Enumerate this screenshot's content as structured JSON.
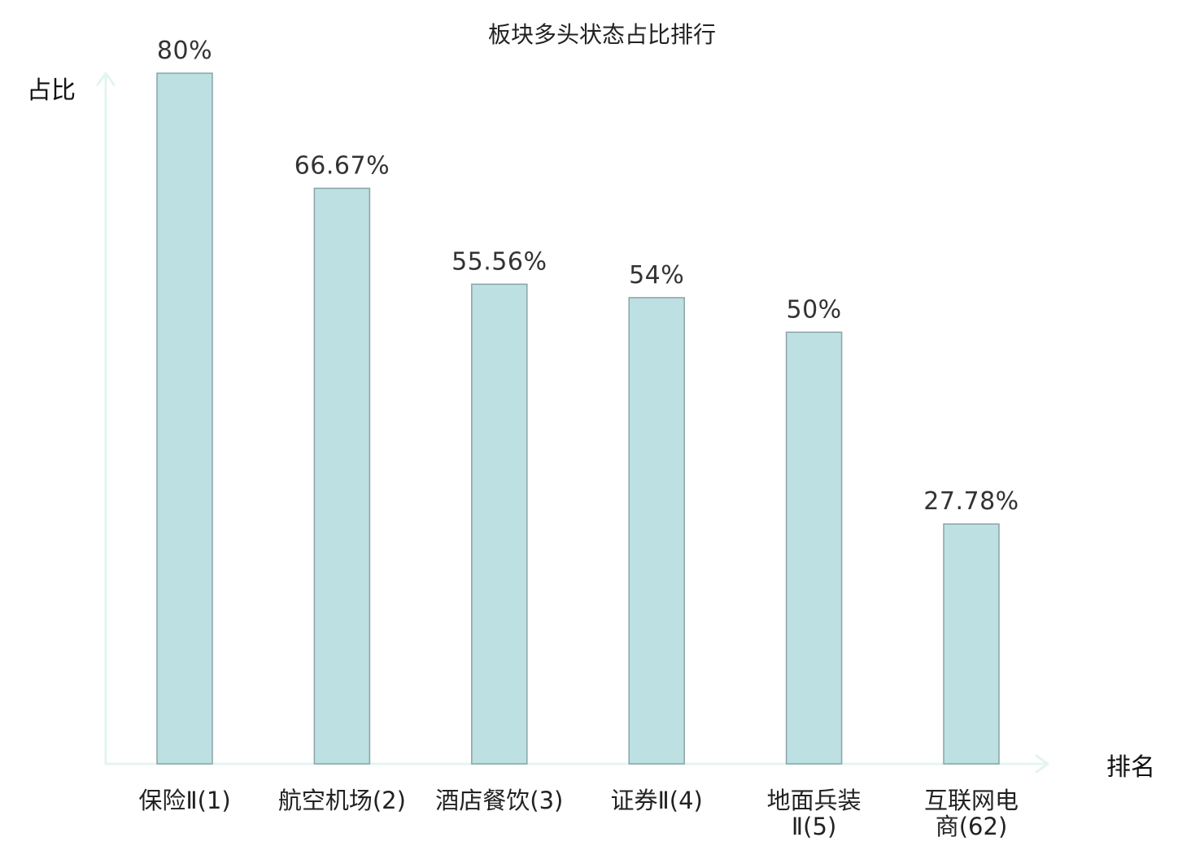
{
  "chart_data": {
    "type": "bar",
    "title": "板块多头状态占比排行",
    "ylabel": "占比",
    "xlabel": "排名",
    "ylim": [
      0,
      100
    ],
    "grid": false,
    "categories": [
      {
        "lines": [
          "保险Ⅱ(1)"
        ],
        "highlight": false
      },
      {
        "lines": [
          "航空机场(2)"
        ],
        "highlight": false
      },
      {
        "lines": [
          "酒店餐饮(3)"
        ],
        "highlight": false
      },
      {
        "lines": [
          "证券Ⅱ(4)"
        ],
        "highlight": false
      },
      {
        "lines": [
          "地面兵装",
          "Ⅱ(5)"
        ],
        "highlight": false
      },
      {
        "lines": [
          "互联网电",
          "商(62)"
        ],
        "highlight": true
      }
    ],
    "values": [
      80,
      66.67,
      55.56,
      54,
      50,
      27.78
    ],
    "value_labels": [
      "80%",
      "66.67%",
      "55.56%",
      "54%",
      "50%",
      "27.78%"
    ]
  },
  "colors": {
    "bar_fill": "#bde0e3",
    "bar_stroke": "#8aa3a6",
    "axis": "#e3f4f2",
    "highlight_text": "#e8121b",
    "text": "#222222"
  }
}
